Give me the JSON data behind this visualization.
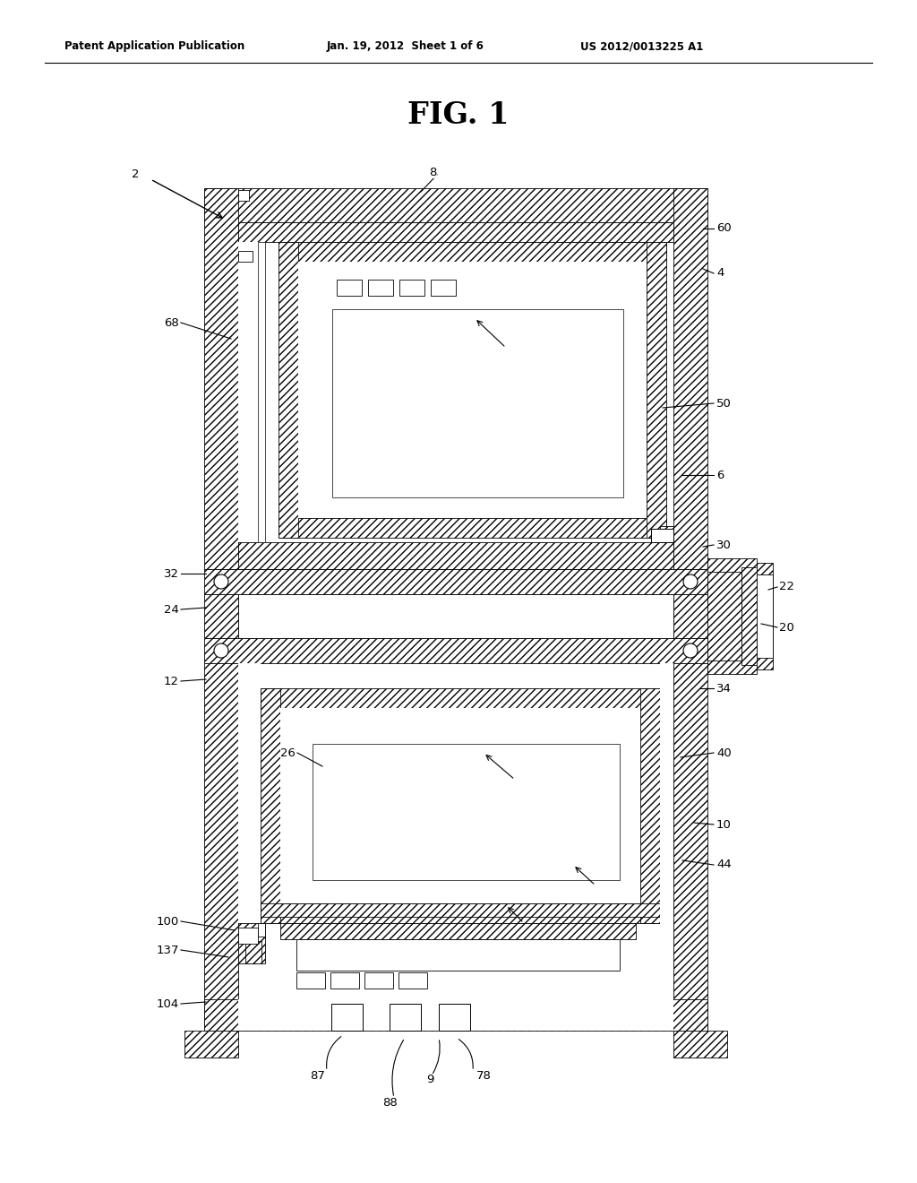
{
  "header_left": "Patent Application Publication",
  "header_mid": "Jan. 19, 2012  Sheet 1 of 6",
  "header_right": "US 2012/0013225 A1",
  "fig_title": "FIG. 1",
  "bg_color": "#ffffff"
}
